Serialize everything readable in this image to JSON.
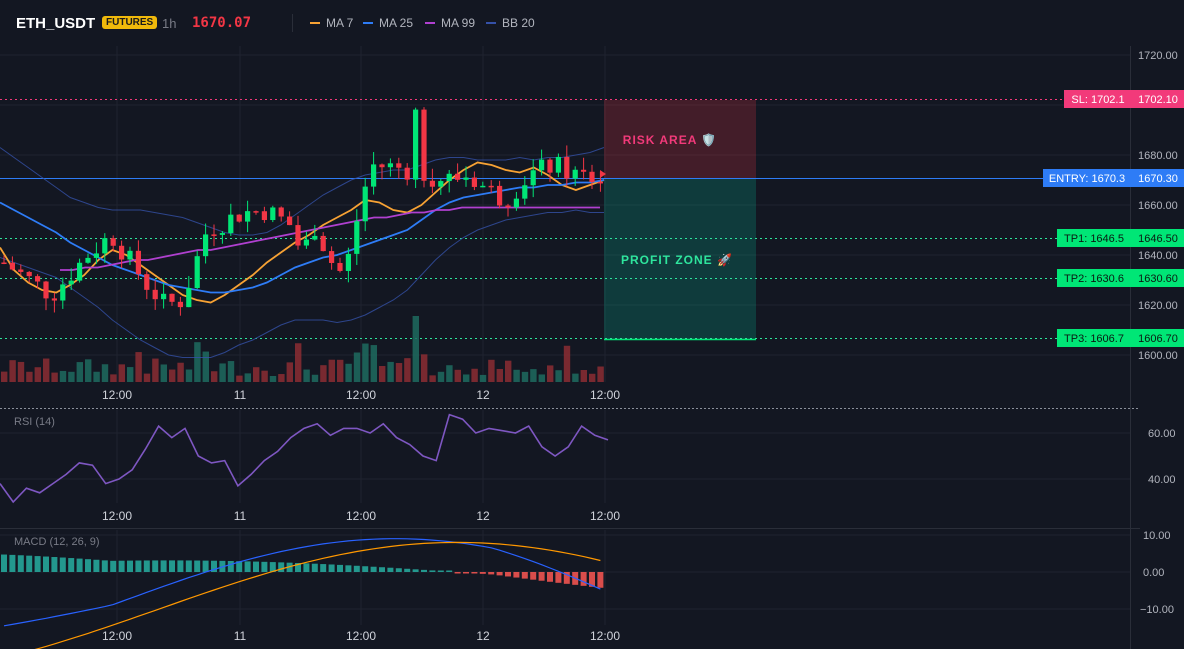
{
  "header": {
    "symbol": "ETH_USDT",
    "badge": "FUTURES",
    "interval": "1h",
    "price": "1670.07",
    "indicators": [
      {
        "label": "MA 7",
        "color": "#f7a234"
      },
      {
        "label": "MA 25",
        "color": "#2e7cf6"
      },
      {
        "label": "MA 99",
        "color": "#b040d0"
      },
      {
        "label": "BB 20",
        "color": "#3551a8"
      }
    ]
  },
  "price_axis": {
    "ticks": [
      "1720.00",
      "1680.00",
      "1660.00",
      "1640.00",
      "1620.00",
      "1600.00"
    ]
  },
  "levels": {
    "sl": {
      "label": "SL: 1702.1",
      "value": "1702.10"
    },
    "entry": {
      "label": "ENTRY: 1670.3",
      "value": "1670.30"
    },
    "tp1": {
      "label": "TP1: 1646.5",
      "value": "1646.50"
    },
    "tp2": {
      "label": "TP2: 1630.6",
      "value": "1630.60"
    },
    "tp3": {
      "label": "TP3: 1606.7",
      "value": "1606.70"
    }
  },
  "zones": {
    "risk": "RISK AREA 🛡️",
    "profit": "PROFIT ZONE 🚀"
  },
  "time_axis": [
    "12:00",
    "11",
    "12:00",
    "12",
    "12:00"
  ],
  "rsi": {
    "label": "RSI (14)",
    "ticks": [
      "60.00",
      "40.00"
    ]
  },
  "macd": {
    "label": "MACD (12, 26, 9)",
    "ticks": [
      "10.00",
      "0.00",
      "−10.00"
    ]
  },
  "colors": {
    "up": "#26a69a",
    "upbright": "#00e676",
    "down": "#f23645",
    "rsi": "#7e57c2",
    "macd": "#2962ff",
    "signal": "#ff9800"
  },
  "chart_data": {
    "type": "line",
    "series": [
      {
        "name": "MA 7",
        "values": [
          1643,
          1634,
          1629,
          1626,
          1625,
          1628,
          1632,
          1638,
          1642,
          1640,
          1636,
          1632,
          1628,
          1624,
          1622,
          1621,
          1624,
          1628,
          1632,
          1637,
          1641,
          1645,
          1648,
          1652,
          1655,
          1658,
          1662,
          1661,
          1658,
          1657,
          1660,
          1665,
          1670,
          1674,
          1677,
          1676,
          1674,
          1673,
          1675,
          1672,
          1668,
          1666,
          1668,
          1670
        ]
      },
      {
        "name": "MA 25",
        "values": [
          1661,
          1658,
          1655,
          1652,
          1649,
          1645,
          1642,
          1639,
          1636,
          1634,
          1632,
          1630,
          1628,
          1627,
          1626,
          1625,
          1625,
          1626,
          1627,
          1629,
          1632,
          1635,
          1637,
          1639,
          1640,
          1642,
          1644,
          1646,
          1648,
          1650,
          1654,
          1658,
          1661,
          1663,
          1664,
          1665,
          1666,
          1667,
          1667,
          1668,
          1668,
          1669,
          1669,
          1670
        ]
      },
      {
        "name": "MA 99",
        "values": [
          1634,
          1634,
          1635,
          1635,
          1636,
          1637,
          1638,
          1638,
          1639,
          1640,
          1641,
          1642,
          1642,
          1643,
          1644,
          1645,
          1646,
          1647,
          1648,
          1649,
          1650,
          1651,
          1652,
          1653,
          1654,
          1655,
          1655,
          1656,
          1657,
          1657,
          1658,
          1658,
          1659,
          1659,
          1659,
          1659,
          1659,
          1659,
          1659,
          1659,
          1659,
          1659,
          1659,
          1659
        ]
      }
    ],
    "rsi": [
      38,
      30,
      36,
      34,
      38,
      42,
      47,
      46,
      38,
      40,
      44,
      53,
      63,
      58,
      62,
      50,
      47,
      48,
      37,
      42,
      48,
      52,
      58,
      62,
      64,
      59,
      62,
      62,
      60,
      64,
      58,
      55,
      50,
      48,
      68,
      66,
      60,
      62,
      61,
      60,
      63,
      54,
      50,
      54,
      63,
      59,
      57
    ]
  }
}
